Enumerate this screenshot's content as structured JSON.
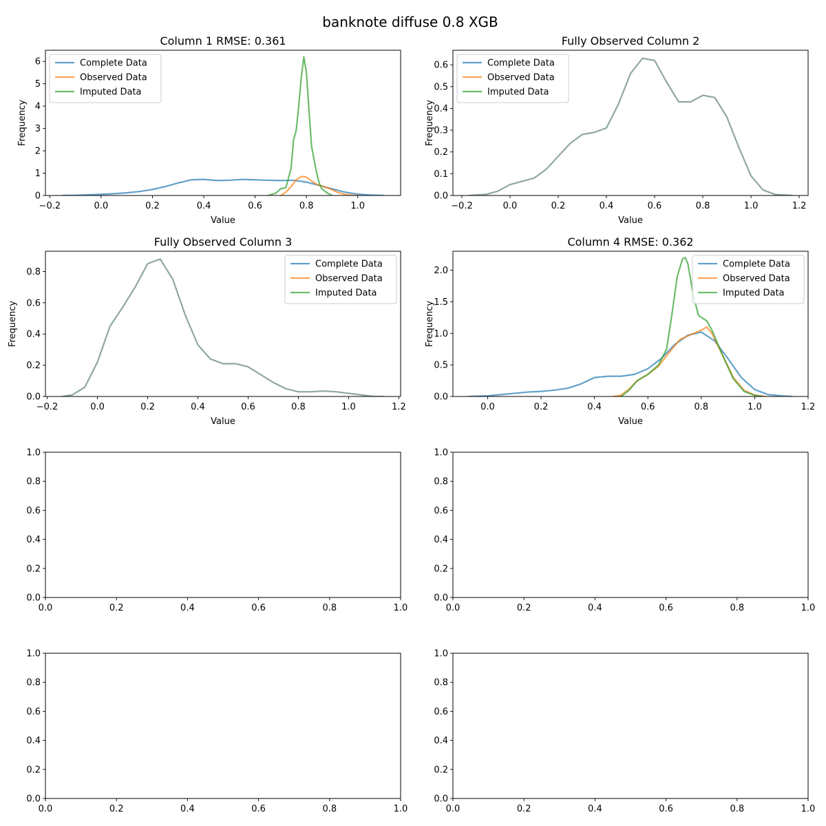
{
  "figure": {
    "title": "banknote diffuse 0.8 XGB"
  },
  "colors": {
    "complete": "#1f77b4",
    "observed": "#ff7f0e",
    "imputed": "#2ca02c",
    "overlap": "#5f7f7f"
  },
  "chart_data": [
    {
      "type": "line",
      "title": "Column 1 RMSE: 0.361",
      "xlabel": "Value",
      "ylabel": "Frequency",
      "xlim": [
        -0.217,
        1.167
      ],
      "ylim": [
        0,
        6.5
      ],
      "xticks": [
        -0.2,
        0.0,
        0.2,
        0.4,
        0.6,
        0.8,
        1.0
      ],
      "xtick_labels": [
        "−0.2",
        "0.0",
        "0.2",
        "0.4",
        "0.6",
        "0.8",
        "1.0"
      ],
      "yticks": [
        0,
        1,
        2,
        3,
        4,
        5,
        6
      ],
      "ytick_labels": [
        "0",
        "1",
        "2",
        "3",
        "4",
        "5",
        "6"
      ],
      "legend": "upper-left",
      "series": [
        {
          "name": "Complete Data",
          "color": "#1f77b4",
          "x": [
            -0.15,
            -0.1,
            -0.05,
            0.0,
            0.05,
            0.1,
            0.15,
            0.2,
            0.25,
            0.3,
            0.35,
            0.4,
            0.45,
            0.5,
            0.55,
            0.6,
            0.65,
            0.7,
            0.75,
            0.8,
            0.85,
            0.9,
            0.95,
            1.0,
            1.05,
            1.1
          ],
          "y": [
            0.0,
            0.01,
            0.03,
            0.05,
            0.08,
            0.12,
            0.18,
            0.27,
            0.4,
            0.56,
            0.7,
            0.72,
            0.67,
            0.68,
            0.72,
            0.7,
            0.68,
            0.67,
            0.68,
            0.6,
            0.45,
            0.3,
            0.15,
            0.06,
            0.02,
            0.0
          ]
        },
        {
          "name": "Observed Data",
          "color": "#ff7f0e",
          "x": [
            0.7,
            0.72,
            0.74,
            0.76,
            0.78,
            0.8,
            0.82,
            0.84,
            0.86,
            0.88,
            0.9,
            0.92,
            0.94,
            0.96,
            0.98,
            1.0
          ],
          "y": [
            0.0,
            0.15,
            0.4,
            0.7,
            0.85,
            0.82,
            0.65,
            0.5,
            0.42,
            0.35,
            0.25,
            0.15,
            0.08,
            0.03,
            0.01,
            0.0
          ]
        },
        {
          "name": "Imputed Data",
          "color": "#2ca02c",
          "x": [
            0.65,
            0.68,
            0.7,
            0.72,
            0.74,
            0.75,
            0.76,
            0.77,
            0.78,
            0.79,
            0.8,
            0.81,
            0.82,
            0.83,
            0.84,
            0.85,
            0.86,
            0.88,
            0.9
          ],
          "y": [
            0.0,
            0.1,
            0.3,
            0.35,
            1.2,
            2.5,
            2.9,
            4.0,
            5.3,
            6.2,
            5.5,
            3.8,
            2.2,
            1.6,
            1.0,
            0.55,
            0.3,
            0.12,
            0.0
          ]
        }
      ]
    },
    {
      "type": "line",
      "title": "Fully Observed Column 2",
      "xlabel": "Value",
      "ylabel": "Frequency",
      "xlim": [
        -0.237,
        1.237
      ],
      "ylim": [
        0,
        0.667
      ],
      "xticks": [
        -0.2,
        0.0,
        0.2,
        0.4,
        0.6,
        0.8,
        1.0,
        1.2
      ],
      "xtick_labels": [
        "−0.2",
        "0.0",
        "0.2",
        "0.4",
        "0.6",
        "0.8",
        "1.0",
        "1.2"
      ],
      "yticks": [
        0.0,
        0.1,
        0.2,
        0.3,
        0.4,
        0.5,
        0.6
      ],
      "ytick_labels": [
        "0.0",
        "0.1",
        "0.2",
        "0.3",
        "0.4",
        "0.5",
        "0.6"
      ],
      "legend": "upper-left",
      "series": [
        {
          "name": "Complete Data",
          "color": "#5f7f7f",
          "x": [
            -0.17,
            -0.1,
            -0.05,
            0.0,
            0.05,
            0.1,
            0.15,
            0.2,
            0.25,
            0.3,
            0.35,
            0.4,
            0.45,
            0.5,
            0.55,
            0.6,
            0.65,
            0.7,
            0.75,
            0.8,
            0.85,
            0.9,
            0.95,
            1.0,
            1.05,
            1.1,
            1.17
          ],
          "y": [
            0.0,
            0.005,
            0.02,
            0.05,
            0.065,
            0.08,
            0.12,
            0.18,
            0.24,
            0.28,
            0.29,
            0.31,
            0.42,
            0.56,
            0.63,
            0.62,
            0.52,
            0.43,
            0.43,
            0.46,
            0.45,
            0.36,
            0.22,
            0.09,
            0.025,
            0.005,
            0.0
          ]
        },
        {
          "name": "Observed Data",
          "color": "#5f7f7f",
          "x": [],
          "y": []
        },
        {
          "name": "Imputed Data",
          "color": "#5f7f7f",
          "x": [],
          "y": []
        }
      ]
    },
    {
      "type": "line",
      "title": "Fully Observed Column 3",
      "xlabel": "Value",
      "ylabel": "Frequency",
      "xlim": [
        -0.207,
        1.207
      ],
      "ylim": [
        0,
        0.93
      ],
      "xticks": [
        -0.2,
        0.0,
        0.2,
        0.4,
        0.6,
        0.8,
        1.0,
        1.2
      ],
      "xtick_labels": [
        "−0.2",
        "0.0",
        "0.2",
        "0.4",
        "0.6",
        "0.8",
        "1.0",
        "1.2"
      ],
      "yticks": [
        0.0,
        0.2,
        0.4,
        0.6,
        0.8
      ],
      "ytick_labels": [
        "0.0",
        "0.2",
        "0.4",
        "0.6",
        "0.8"
      ],
      "legend": "upper-right",
      "series": [
        {
          "name": "Complete Data",
          "color": "#5f7f7f",
          "x": [
            -0.14,
            -0.1,
            -0.05,
            0.0,
            0.05,
            0.1,
            0.15,
            0.2,
            0.25,
            0.3,
            0.35,
            0.4,
            0.45,
            0.5,
            0.55,
            0.6,
            0.65,
            0.7,
            0.75,
            0.8,
            0.85,
            0.9,
            0.95,
            1.0,
            1.05,
            1.1,
            1.14
          ],
          "y": [
            0.0,
            0.01,
            0.06,
            0.22,
            0.45,
            0.57,
            0.7,
            0.85,
            0.88,
            0.75,
            0.52,
            0.33,
            0.24,
            0.21,
            0.21,
            0.19,
            0.14,
            0.09,
            0.05,
            0.03,
            0.03,
            0.035,
            0.03,
            0.02,
            0.01,
            0.0,
            0.0
          ]
        },
        {
          "name": "Observed Data",
          "color": "#5f7f7f",
          "x": [],
          "y": []
        },
        {
          "name": "Imputed Data",
          "color": "#5f7f7f",
          "x": [],
          "y": []
        }
      ]
    },
    {
      "type": "line",
      "title": "Column 4 RMSE: 0.362",
      "xlabel": "Value",
      "ylabel": "Frequency",
      "xlim": [
        -0.13,
        1.2
      ],
      "ylim": [
        0,
        2.3
      ],
      "xticks": [
        0.0,
        0.2,
        0.4,
        0.6,
        0.8,
        1.0,
        1.2
      ],
      "xtick_labels": [
        "0.0",
        "0.2",
        "0.4",
        "0.6",
        "0.8",
        "1.0",
        "1.2"
      ],
      "yticks": [
        0.0,
        0.5,
        1.0,
        1.5,
        2.0
      ],
      "ytick_labels": [
        "0.0",
        "0.5",
        "1.0",
        "1.5",
        "2.0"
      ],
      "legend": "upper-right",
      "series": [
        {
          "name": "Complete Data",
          "color": "#1f77b4",
          "x": [
            -0.07,
            0.0,
            0.05,
            0.1,
            0.15,
            0.2,
            0.25,
            0.3,
            0.35,
            0.4,
            0.45,
            0.5,
            0.55,
            0.6,
            0.65,
            0.7,
            0.75,
            0.8,
            0.85,
            0.9,
            0.95,
            1.0,
            1.05,
            1.1,
            1.14
          ],
          "y": [
            0.0,
            0.01,
            0.03,
            0.05,
            0.07,
            0.08,
            0.1,
            0.13,
            0.2,
            0.3,
            0.32,
            0.32,
            0.35,
            0.44,
            0.6,
            0.82,
            0.97,
            1.02,
            0.88,
            0.6,
            0.3,
            0.11,
            0.03,
            0.01,
            0.0
          ]
        },
        {
          "name": "Observed Data",
          "color": "#ff7f0e",
          "x": [
            0.47,
            0.5,
            0.53,
            0.56,
            0.6,
            0.64,
            0.68,
            0.72,
            0.76,
            0.8,
            0.82,
            0.84,
            0.88,
            0.92,
            0.96,
            1.0,
            1.04
          ],
          "y": [
            0.0,
            0.02,
            0.12,
            0.25,
            0.35,
            0.48,
            0.7,
            0.9,
            0.98,
            1.05,
            1.1,
            1.0,
            0.65,
            0.3,
            0.1,
            0.02,
            0.0
          ]
        },
        {
          "name": "Imputed Data",
          "color": "#2ca02c",
          "x": [
            0.5,
            0.53,
            0.56,
            0.6,
            0.64,
            0.67,
            0.69,
            0.71,
            0.73,
            0.74,
            0.75,
            0.77,
            0.79,
            0.82,
            0.84,
            0.88,
            0.92,
            0.96,
            1.0,
            1.03
          ],
          "y": [
            0.0,
            0.1,
            0.25,
            0.35,
            0.5,
            0.75,
            1.3,
            1.9,
            2.18,
            2.2,
            2.1,
            1.6,
            1.28,
            1.2,
            1.05,
            0.65,
            0.28,
            0.08,
            0.02,
            0.0
          ]
        }
      ]
    },
    {
      "type": "line",
      "title": "",
      "xlabel": "",
      "ylabel": "",
      "xlim": [
        0,
        1
      ],
      "ylim": [
        0,
        1
      ],
      "xticks": [
        0.0,
        0.2,
        0.4,
        0.6,
        0.8,
        1.0
      ],
      "xtick_labels": [
        "0.0",
        "0.2",
        "0.4",
        "0.6",
        "0.8",
        "1.0"
      ],
      "yticks": [
        0.0,
        0.2,
        0.4,
        0.6,
        0.8,
        1.0
      ],
      "ytick_labels": [
        "0.0",
        "0.2",
        "0.4",
        "0.6",
        "0.8",
        "1.0"
      ],
      "series": []
    },
    {
      "type": "line",
      "title": "",
      "xlabel": "",
      "ylabel": "",
      "xlim": [
        0,
        1
      ],
      "ylim": [
        0,
        1
      ],
      "xticks": [
        0.0,
        0.2,
        0.4,
        0.6,
        0.8,
        1.0
      ],
      "xtick_labels": [
        "0.0",
        "0.2",
        "0.4",
        "0.6",
        "0.8",
        "1.0"
      ],
      "yticks": [
        0.0,
        0.2,
        0.4,
        0.6,
        0.8,
        1.0
      ],
      "ytick_labels": [
        "0.0",
        "0.2",
        "0.4",
        "0.6",
        "0.8",
        "1.0"
      ],
      "series": []
    },
    {
      "type": "line",
      "title": "",
      "xlabel": "",
      "ylabel": "",
      "xlim": [
        0,
        1
      ],
      "ylim": [
        0,
        1
      ],
      "xticks": [
        0.0,
        0.2,
        0.4,
        0.6,
        0.8,
        1.0
      ],
      "xtick_labels": [
        "0.0",
        "0.2",
        "0.4",
        "0.6",
        "0.8",
        "1.0"
      ],
      "yticks": [
        0.0,
        0.2,
        0.4,
        0.6,
        0.8,
        1.0
      ],
      "ytick_labels": [
        "0.0",
        "0.2",
        "0.4",
        "0.6",
        "0.8",
        "1.0"
      ],
      "series": []
    },
    {
      "type": "line",
      "title": "",
      "xlabel": "",
      "ylabel": "",
      "xlim": [
        0,
        1
      ],
      "ylim": [
        0,
        1
      ],
      "xticks": [
        0.0,
        0.2,
        0.4,
        0.6,
        0.8,
        1.0
      ],
      "xtick_labels": [
        "0.0",
        "0.2",
        "0.4",
        "0.6",
        "0.8",
        "1.0"
      ],
      "yticks": [
        0.0,
        0.2,
        0.4,
        0.6,
        0.8,
        1.0
      ],
      "ytick_labels": [
        "0.0",
        "0.2",
        "0.4",
        "0.6",
        "0.8",
        "1.0"
      ],
      "series": []
    }
  ]
}
